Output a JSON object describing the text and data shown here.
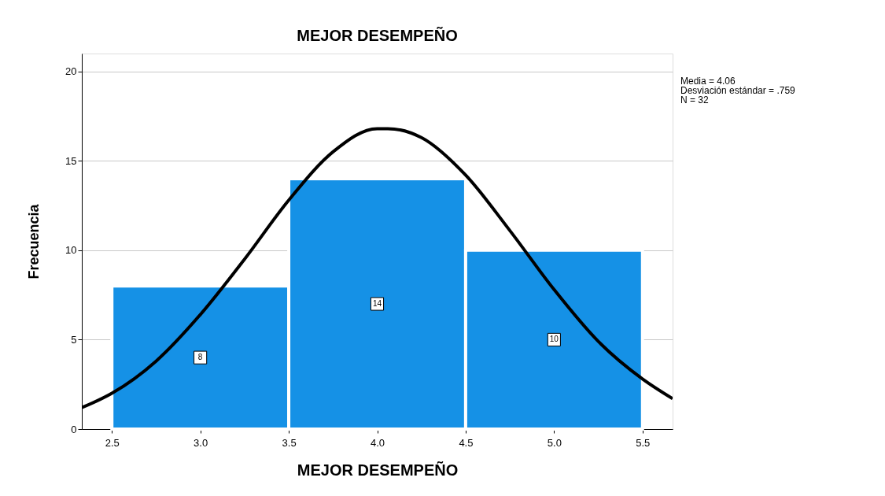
{
  "chart_data": {
    "type": "histogram",
    "title": "MEJOR DESEMPEÑO",
    "xlabel": "MEJOR DESEMPEÑO",
    "ylabel": "Frecuencia",
    "bins": [
      2.5,
      3.5,
      4.5,
      5.5
    ],
    "values": [
      8,
      14,
      10
    ],
    "color": "#1591e6",
    "value_labels": [
      "8",
      "14",
      "10"
    ],
    "series": [
      {
        "type": "line",
        "color": "#000000",
        "x": [
          2.33,
          2.5,
          2.75,
          3.0,
          3.25,
          3.5,
          3.75,
          4.0,
          4.06,
          4.25,
          4.5,
          4.75,
          5.0,
          5.25,
          5.5,
          5.67
        ],
        "values": [
          1.2,
          2.0,
          3.8,
          6.4,
          9.5,
          12.8,
          15.5,
          16.8,
          16.8,
          16.3,
          14.2,
          11.1,
          7.8,
          4.9,
          2.8,
          1.7
        ]
      }
    ],
    "xlim": [
      2.33,
      5.67
    ],
    "ylim": [
      0,
      21
    ],
    "xticks": [
      2.5,
      {
        "value": 3.0,
        "label": "3.0"
      },
      3.5,
      {
        "value": 4.0,
        "label": "4.0"
      },
      4.5,
      {
        "value": 5.0,
        "label": "5.0"
      },
      5.5
    ],
    "yticks": [
      0,
      5,
      10,
      15,
      20
    ],
    "grid": "y",
    "annotations": [
      "Media = 4.06",
      "Desviación estándar = .759",
      "N = 32"
    ]
  }
}
